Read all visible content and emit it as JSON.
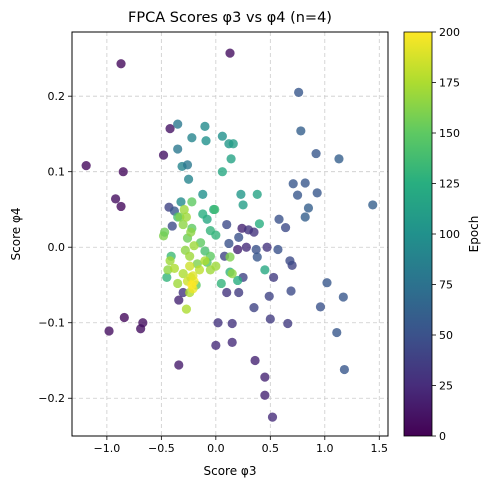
{
  "chart_data": {
    "type": "scatter",
    "title": "FPCA Scores φ3 vs φ4 (n=4)",
    "xlabel": "Score φ3",
    "ylabel": "Score φ4",
    "xlim": [
      -1.32,
      1.58
    ],
    "ylim": [
      -0.25,
      0.285
    ],
    "xticks": [
      -1.0,
      -0.5,
      0.0,
      0.5,
      1.0,
      1.5
    ],
    "xtick_labels": [
      "−1.0",
      "−0.5",
      "0.0",
      "0.5",
      "1.0",
      "1.5"
    ],
    "yticks": [
      -0.2,
      -0.1,
      0.0,
      0.1,
      0.2
    ],
    "ytick_labels": [
      "−0.2",
      "−0.1",
      "0.0",
      "0.1",
      "0.2"
    ],
    "grid": true,
    "grid_style": "dashed",
    "marker_color_scale": "viridis",
    "colorbar": {
      "label": "Epoch",
      "min": 0,
      "max": 200,
      "ticks": [
        0,
        25,
        50,
        75,
        100,
        125,
        150,
        175,
        200
      ],
      "tick_labels": [
        "0",
        "25",
        "50",
        "75",
        "100",
        "125",
        "150",
        "175",
        "200"
      ]
    },
    "points": [
      {
        "x": -1.19,
        "y": 0.108,
        "c": 5
      },
      {
        "x": -0.87,
        "y": 0.243,
        "c": 5
      },
      {
        "x": 0.13,
        "y": 0.257,
        "c": 8
      },
      {
        "x": -0.92,
        "y": 0.064,
        "c": 8
      },
      {
        "x": -0.87,
        "y": 0.054,
        "c": 5
      },
      {
        "x": -0.85,
        "y": 0.1,
        "c": 5
      },
      {
        "x": -0.98,
        "y": -0.111,
        "c": 8
      },
      {
        "x": -0.84,
        "y": -0.093,
        "c": 5
      },
      {
        "x": -0.67,
        "y": -0.1,
        "c": 8
      },
      {
        "x": -0.69,
        "y": -0.108,
        "c": 8
      },
      {
        "x": -0.48,
        "y": 0.122,
        "c": 10
      },
      {
        "x": -0.42,
        "y": 0.157,
        "c": 10
      },
      {
        "x": -0.34,
        "y": -0.156,
        "c": 15
      },
      {
        "x": 0.45,
        "y": -0.172,
        "c": 20
      },
      {
        "x": 0.45,
        "y": -0.196,
        "c": 20
      },
      {
        "x": 0.52,
        "y": -0.225,
        "c": 25
      },
      {
        "x": 0.36,
        "y": -0.15,
        "c": 20
      },
      {
        "x": 0.0,
        "y": -0.13,
        "c": 25
      },
      {
        "x": 0.15,
        "y": -0.126,
        "c": 25
      },
      {
        "x": 0.15,
        "y": -0.101,
        "c": 30
      },
      {
        "x": 0.02,
        "y": -0.1,
        "c": 30
      },
      {
        "x": 0.5,
        "y": -0.095,
        "c": 35
      },
      {
        "x": 0.66,
        "y": -0.101,
        "c": 35
      },
      {
        "x": -0.34,
        "y": -0.07,
        "c": 20
      },
      {
        "x": -0.3,
        "y": -0.06,
        "c": 30
      },
      {
        "x": 0.1,
        "y": -0.06,
        "c": 30
      },
      {
        "x": 0.21,
        "y": -0.06,
        "c": 35
      },
      {
        "x": 0.35,
        "y": -0.08,
        "c": 40
      },
      {
        "x": 0.49,
        "y": -0.065,
        "c": 40
      },
      {
        "x": 0.69,
        "y": -0.058,
        "c": 45
      },
      {
        "x": 0.96,
        "y": -0.079,
        "c": 50
      },
      {
        "x": 1.11,
        "y": -0.113,
        "c": 55
      },
      {
        "x": 1.17,
        "y": -0.066,
        "c": 55
      },
      {
        "x": 1.18,
        "y": -0.162,
        "c": 55
      },
      {
        "x": 1.02,
        "y": -0.047,
        "c": 55
      },
      {
        "x": 0.76,
        "y": 0.205,
        "c": 55
      },
      {
        "x": 0.78,
        "y": 0.154,
        "c": 60
      },
      {
        "x": 0.92,
        "y": 0.124,
        "c": 55
      },
      {
        "x": 1.13,
        "y": 0.117,
        "c": 60
      },
      {
        "x": 1.44,
        "y": 0.056,
        "c": 60
      },
      {
        "x": 0.82,
        "y": 0.085,
        "c": 55
      },
      {
        "x": 0.85,
        "y": 0.052,
        "c": 60
      },
      {
        "x": 0.93,
        "y": 0.072,
        "c": 55
      },
      {
        "x": 0.75,
        "y": 0.069,
        "c": 55
      },
      {
        "x": 0.71,
        "y": 0.084,
        "c": 55
      },
      {
        "x": 0.58,
        "y": 0.037,
        "c": 50
      },
      {
        "x": 0.64,
        "y": 0.026,
        "c": 45
      },
      {
        "x": 0.57,
        "y": -0.003,
        "c": 50
      },
      {
        "x": 0.7,
        "y": -0.024,
        "c": 40
      },
      {
        "x": 0.68,
        "y": -0.018,
        "c": 45
      },
      {
        "x": 0.82,
        "y": 0.04,
        "c": 60
      },
      {
        "x": 0.47,
        "y": 0.0,
        "c": 30
      },
      {
        "x": 0.53,
        "y": -0.04,
        "c": 35
      },
      {
        "x": 0.35,
        "y": 0.02,
        "c": 30
      },
      {
        "x": 0.28,
        "y": 0.0,
        "c": 25
      },
      {
        "x": 0.24,
        "y": 0.025,
        "c": 20
      },
      {
        "x": 0.2,
        "y": -0.003,
        "c": 20
      },
      {
        "x": 0.3,
        "y": 0.023,
        "c": 30
      },
      {
        "x": 0.25,
        "y": -0.04,
        "c": 40
      },
      {
        "x": 0.08,
        "y": -0.012,
        "c": 40
      },
      {
        "x": 0.12,
        "y": 0.005,
        "c": 50
      },
      {
        "x": 0.37,
        "y": -0.003,
        "c": 50
      },
      {
        "x": 0.38,
        "y": -0.013,
        "c": 55
      },
      {
        "x": 0.21,
        "y": 0.013,
        "c": 50
      },
      {
        "x": 0.1,
        "y": 0.03,
        "c": 45
      },
      {
        "x": -0.43,
        "y": 0.053,
        "c": 40
      },
      {
        "x": -0.4,
        "y": 0.028,
        "c": 45
      },
      {
        "x": -0.38,
        "y": 0.048,
        "c": 55
      },
      {
        "x": -0.35,
        "y": 0.163,
        "c": 80
      },
      {
        "x": -0.35,
        "y": 0.13,
        "c": 80
      },
      {
        "x": -0.31,
        "y": 0.107,
        "c": 90
      },
      {
        "x": -0.26,
        "y": 0.109,
        "c": 80
      },
      {
        "x": -0.25,
        "y": 0.09,
        "c": 90
      },
      {
        "x": -0.22,
        "y": 0.145,
        "c": 90
      },
      {
        "x": -0.1,
        "y": 0.16,
        "c": 95
      },
      {
        "x": -0.09,
        "y": 0.141,
        "c": 100
      },
      {
        "x": 0.06,
        "y": 0.147,
        "c": 100
      },
      {
        "x": 0.12,
        "y": 0.137,
        "c": 105
      },
      {
        "x": 0.16,
        "y": 0.137,
        "c": 110
      },
      {
        "x": 0.14,
        "y": 0.117,
        "c": 115
      },
      {
        "x": 0.06,
        "y": 0.1,
        "c": 120
      },
      {
        "x": -0.32,
        "y": 0.06,
        "c": 95
      },
      {
        "x": -0.12,
        "y": 0.07,
        "c": 100
      },
      {
        "x": 0.23,
        "y": 0.07,
        "c": 105
      },
      {
        "x": 0.25,
        "y": 0.056,
        "c": 110
      },
      {
        "x": 0.38,
        "y": 0.07,
        "c": 115
      },
      {
        "x": 0.4,
        "y": 0.031,
        "c": 125
      },
      {
        "x": 0.45,
        "y": -0.03,
        "c": 120
      },
      {
        "x": 0.2,
        "y": -0.044,
        "c": 125
      },
      {
        "x": 0.13,
        "y": -0.033,
        "c": 130
      },
      {
        "x": 0.05,
        "y": -0.048,
        "c": 130
      },
      {
        "x": -0.08,
        "y": 0.037,
        "c": 120
      },
      {
        "x": -0.12,
        "y": 0.044,
        "c": 125
      },
      {
        "x": -0.02,
        "y": 0.05,
        "c": 125
      },
      {
        "x": -0.05,
        "y": 0.022,
        "c": 130
      },
      {
        "x": 0.0,
        "y": 0.016,
        "c": 130
      },
      {
        "x": -0.01,
        "y": 0.05,
        "c": 135
      },
      {
        "x": -0.1,
        "y": -0.005,
        "c": 140
      },
      {
        "x": -0.08,
        "y": -0.02,
        "c": 145
      },
      {
        "x": -0.05,
        "y": -0.012,
        "c": 150
      },
      {
        "x": -0.14,
        "y": 0.006,
        "c": 150
      },
      {
        "x": -0.18,
        "y": -0.05,
        "c": 150
      },
      {
        "x": -0.22,
        "y": 0.06,
        "c": 150
      },
      {
        "x": -0.35,
        "y": 0.04,
        "c": 140
      },
      {
        "x": -0.45,
        "y": -0.04,
        "c": 130
      },
      {
        "x": -0.41,
        "y": -0.012,
        "c": 135
      },
      {
        "x": -0.22,
        "y": 0.025,
        "c": 150
      },
      {
        "x": -0.26,
        "y": 0.012,
        "c": 155
      },
      {
        "x": -0.17,
        "y": -0.022,
        "c": 160
      },
      {
        "x": 0.13,
        "y": -0.013,
        "c": 160
      },
      {
        "x": -0.33,
        "y": 0.04,
        "c": 160
      },
      {
        "x": -0.3,
        "y": 0.03,
        "c": 165
      },
      {
        "x": -0.29,
        "y": 0.05,
        "c": 170
      },
      {
        "x": -0.27,
        "y": 0.04,
        "c": 170
      },
      {
        "x": -0.28,
        "y": -0.004,
        "c": 165
      },
      {
        "x": -0.24,
        "y": -0.012,
        "c": 170
      },
      {
        "x": -0.23,
        "y": 0.02,
        "c": 165
      },
      {
        "x": -0.2,
        "y": 0.002,
        "c": 170
      },
      {
        "x": -0.48,
        "y": 0.015,
        "c": 160
      },
      {
        "x": -0.47,
        "y": 0.02,
        "c": 155
      },
      {
        "x": -0.44,
        "y": -0.03,
        "c": 165
      },
      {
        "x": -0.42,
        "y": -0.018,
        "c": 170
      },
      {
        "x": -0.38,
        "y": -0.028,
        "c": 175
      },
      {
        "x": -0.35,
        "y": -0.048,
        "c": 170
      },
      {
        "x": -0.3,
        "y": -0.035,
        "c": 175
      },
      {
        "x": -0.27,
        "y": -0.082,
        "c": 175
      },
      {
        "x": -0.24,
        "y": -0.06,
        "c": 175
      },
      {
        "x": -0.26,
        "y": -0.045,
        "c": 185
      },
      {
        "x": -0.23,
        "y": -0.04,
        "c": 185
      },
      {
        "x": -0.21,
        "y": -0.055,
        "c": 195
      },
      {
        "x": -0.22,
        "y": -0.05,
        "c": 200
      },
      {
        "x": -0.2,
        "y": -0.045,
        "c": 200
      },
      {
        "x": -0.21,
        "y": -0.038,
        "c": 190
      },
      {
        "x": -0.24,
        "y": -0.025,
        "c": 185
      },
      {
        "x": -0.15,
        "y": -0.03,
        "c": 180
      },
      {
        "x": -0.1,
        "y": -0.018,
        "c": 175
      },
      {
        "x": -0.05,
        "y": -0.03,
        "c": 170
      },
      {
        "x": 0.0,
        "y": -0.025,
        "c": 170
      },
      {
        "x": 0.15,
        "y": -0.035,
        "c": 165
      }
    ]
  }
}
